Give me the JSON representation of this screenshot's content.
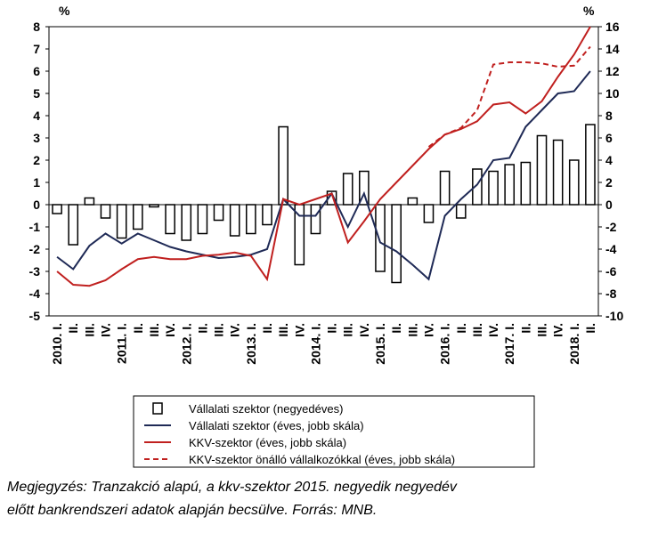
{
  "chart_data": {
    "type": "bar-line",
    "y_unit": "%",
    "y2_unit": "%",
    "categories": [
      "2010. I.",
      "II.",
      "III.",
      "IV.",
      "2011. I.",
      "II.",
      "III.",
      "IV.",
      "2012. I.",
      "II.",
      "III.",
      "IV.",
      "2013. I.",
      "II.",
      "III.",
      "IV.",
      "2014. I.",
      "II.",
      "III.",
      "IV.",
      "2015. I.",
      "II.",
      "III.",
      "IV.",
      "2016. I.",
      "II.",
      "III.",
      "IV.",
      "2017. I.",
      "II.",
      "III.",
      "IV.",
      "2018. I.",
      "II."
    ],
    "ylim": [
      -5,
      8
    ],
    "yticks": [
      -5,
      -4,
      -3,
      -2,
      -1,
      0,
      1,
      2,
      3,
      4,
      5,
      6,
      7,
      8
    ],
    "y2lim": [
      -10,
      16
    ],
    "y2ticks": [
      -10,
      -8,
      -6,
      -4,
      -2,
      0,
      2,
      4,
      6,
      8,
      10,
      12,
      14,
      16
    ],
    "series": [
      {
        "name": "Vállalati szektor (negyedéves)",
        "kind": "bar",
        "color": "#ffffff",
        "values": [
          -0.4,
          -1.8,
          0.3,
          -0.6,
          -1.5,
          -1.1,
          -0.1,
          -1.3,
          -1.6,
          -1.3,
          -0.7,
          -1.4,
          -1.3,
          -0.9,
          3.5,
          -2.7,
          -1.3,
          0.6,
          1.4,
          1.5,
          -3.0,
          -3.5,
          0.3,
          -0.8,
          1.5,
          -0.6,
          1.6,
          1.5,
          1.8,
          1.9,
          3.1,
          2.9,
          2.0,
          3.6
        ]
      },
      {
        "name": "Vállalati szektor (éves, jobb skála)",
        "kind": "line",
        "axis": "y2",
        "color": "#1f2a56",
        "dash": false,
        "values": [
          -4.7,
          -5.8,
          -3.7,
          -2.6,
          -3.5,
          -2.6,
          -3.2,
          -3.8,
          -4.2,
          -4.5,
          -4.8,
          -4.7,
          -4.5,
          -4.0,
          0.5,
          -1.0,
          -1.0,
          1.0,
          -2.0,
          1.0,
          -3.4,
          -4.2,
          -5.4,
          -6.7,
          -1.0,
          0.5,
          1.8,
          4.0,
          4.2,
          7.0,
          8.5,
          10.0,
          10.2,
          12.0
        ]
      },
      {
        "name": "KKV-szektor (éves, jobb skála)",
        "kind": "line",
        "axis": "y2",
        "color": "#c0201f",
        "dash": false,
        "values": [
          -6.0,
          -7.2,
          -7.3,
          -6.8,
          -5.8,
          -4.9,
          -4.7,
          -4.9,
          -4.9,
          -4.6,
          -4.5,
          -4.3,
          -4.6,
          -6.7,
          0.5,
          0.0,
          0.5,
          1.0,
          -3.4,
          -1.5,
          0.5,
          2.0,
          3.5,
          5.0,
          6.3,
          6.8,
          7.5,
          9.0,
          9.2,
          8.2,
          9.3,
          11.5,
          13.5,
          16.0
        ]
      },
      {
        "name": "KKV-szektor önálló vállalkozókkal (éves, jobb skála)",
        "kind": "line",
        "axis": "y2",
        "color": "#c0201f",
        "dash": true,
        "values": [
          null,
          null,
          null,
          null,
          null,
          null,
          null,
          null,
          null,
          null,
          null,
          null,
          null,
          null,
          null,
          null,
          null,
          null,
          null,
          null,
          null,
          null,
          null,
          5.2,
          6.3,
          6.9,
          8.5,
          12.6,
          12.8,
          12.8,
          12.7,
          12.4,
          12.5,
          14.2
        ]
      }
    ],
    "note": [
      "Megjegyzés: Tranzakció alapú, a kkv-szektor 2015. negyedik negyedév",
      "előtt bankrendszeri adatok alapján becsülve. Forrás: MNB."
    ]
  }
}
